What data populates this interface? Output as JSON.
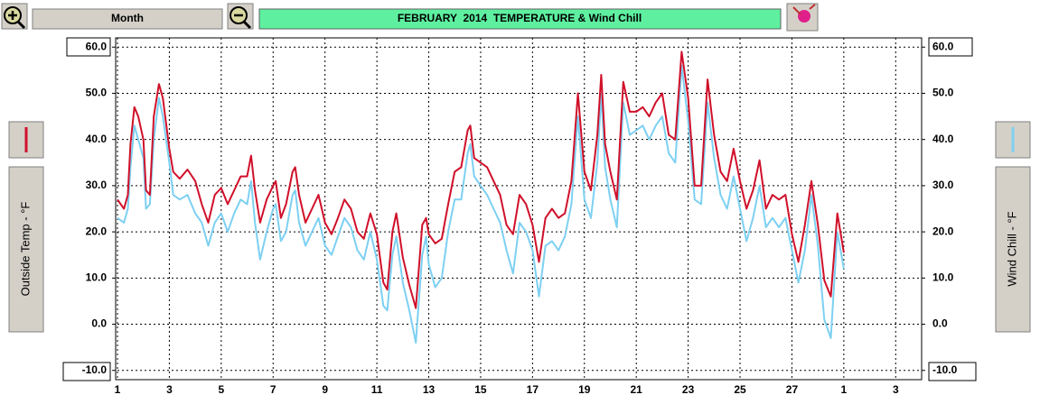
{
  "toolbar": {
    "period": "Month"
  },
  "chart_data": {
    "type": "line",
    "title": "FEBRUARY  2014  TEMPERATURE & Wind Chill",
    "x": [
      0,
      0.25,
      0.4,
      0.5,
      0.65,
      0.8,
      1.0,
      1.1,
      1.25,
      1.4,
      1.6,
      1.75,
      2.0,
      2.15,
      2.4,
      2.7,
      3.0,
      3.25,
      3.5,
      3.75,
      4.0,
      4.25,
      4.5,
      4.75,
      5.0,
      5.15,
      5.3,
      5.5,
      5.75,
      6.0,
      6.1,
      6.3,
      6.5,
      6.75,
      6.85,
      7.0,
      7.25,
      7.5,
      7.75,
      8.0,
      8.25,
      8.5,
      8.75,
      9.0,
      9.25,
      9.5,
      9.75,
      10.0,
      10.25,
      10.4,
      10.6,
      10.75,
      11.0,
      11.25,
      11.5,
      11.75,
      11.9,
      12.0,
      12.25,
      12.5,
      12.75,
      13.0,
      13.25,
      13.5,
      13.6,
      13.75,
      14.0,
      14.25,
      14.5,
      14.75,
      15.0,
      15.25,
      15.5,
      15.75,
      16.0,
      16.25,
      16.5,
      16.75,
      17.0,
      17.25,
      17.5,
      17.75,
      18.0,
      18.25,
      18.5,
      18.65,
      18.8,
      19.0,
      19.25,
      19.5,
      19.75,
      20.0,
      20.25,
      20.5,
      20.75,
      21.0,
      21.25,
      21.5,
      21.75,
      22.0,
      22.25,
      22.5,
      22.75,
      23.0,
      23.25,
      23.5,
      23.75,
      24.0,
      24.25,
      24.5,
      24.75,
      25.0,
      25.25,
      25.5,
      25.75,
      26.0,
      26.25,
      26.5,
      26.75,
      27.0,
      27.25,
      27.5,
      27.75,
      28.0
    ],
    "series": [
      {
        "name": "Outside Temp - °F",
        "color": "#d0102a",
        "values": [
          27,
          25,
          28,
          39,
          47,
          45,
          40,
          29,
          28,
          45,
          52,
          49,
          38,
          33,
          31.5,
          33.5,
          31,
          26,
          22,
          28,
          29.5,
          26,
          29,
          32,
          32,
          36.5,
          29,
          22,
          27,
          30,
          31,
          23,
          26,
          33,
          34,
          28,
          22,
          25,
          28,
          22,
          19.5,
          23,
          27,
          25,
          20,
          18.5,
          24,
          19.5,
          9,
          7.5,
          20,
          24,
          14.5,
          8.5,
          3.5,
          21.5,
          23,
          19.5,
          17.5,
          18.5,
          26,
          33,
          34,
          42,
          43,
          36,
          35,
          34,
          31,
          28,
          21.5,
          19.5,
          28,
          26,
          21.5,
          13.5,
          23,
          25,
          23,
          24,
          31,
          50,
          33,
          29,
          41,
          54,
          39,
          33,
          27,
          52.5,
          46,
          46,
          47,
          45,
          48,
          50,
          41,
          40,
          59,
          49,
          30,
          30,
          53,
          41,
          33,
          31,
          38,
          31,
          25,
          29,
          35.5,
          25,
          28,
          27,
          28,
          19.5,
          13.5,
          21.5,
          31,
          21.5,
          9.5,
          6,
          24,
          15.5
        ]
      },
      {
        "name": "Wind Chill - °F",
        "color": "#7dd0f2",
        "axis": "y2",
        "values": [
          23,
          22,
          25,
          34,
          43,
          40,
          36,
          25,
          26,
          40,
          49,
          45,
          35,
          28,
          27,
          28,
          24,
          22,
          17,
          22,
          24,
          20,
          24,
          27,
          26,
          31,
          22,
          14,
          20,
          25,
          26,
          18,
          20,
          28,
          29,
          22,
          17,
          20,
          23,
          17,
          15,
          19,
          23,
          21,
          16,
          14,
          20,
          14,
          4,
          3,
          15,
          19,
          9,
          3,
          -4,
          15,
          19,
          13,
          8,
          10,
          20,
          27,
          27,
          37,
          39,
          32,
          30,
          28,
          25,
          22,
          16,
          11,
          22,
          20,
          16,
          6,
          17,
          18,
          16,
          19,
          26,
          45,
          27,
          23,
          35,
          50,
          34,
          27,
          21,
          48,
          41,
          42,
          43,
          40,
          43,
          45,
          37,
          35,
          56,
          44,
          27,
          26,
          48,
          36,
          28,
          25,
          32,
          25,
          18,
          23,
          30,
          21,
          23,
          21,
          23,
          16,
          9,
          16,
          28,
          17,
          1,
          -3,
          20,
          12
        ]
      }
    ],
    "xlim": [
      0,
      31
    ],
    "xticks": [
      {
        "value": 0,
        "label": "1"
      },
      {
        "value": 2,
        "label": "3"
      },
      {
        "value": 4,
        "label": "5"
      },
      {
        "value": 6,
        "label": "7"
      },
      {
        "value": 8,
        "label": "9"
      },
      {
        "value": 10,
        "label": "11"
      },
      {
        "value": 12,
        "label": "13"
      },
      {
        "value": 14,
        "label": "15"
      },
      {
        "value": 16,
        "label": "17"
      },
      {
        "value": 18,
        "label": "19"
      },
      {
        "value": 20,
        "label": "21"
      },
      {
        "value": 22,
        "label": "23"
      },
      {
        "value": 24,
        "label": "25"
      },
      {
        "value": 26,
        "label": "27"
      },
      {
        "value": 28,
        "label": "1"
      },
      {
        "value": 30,
        "label": "3"
      }
    ],
    "ylim": [
      -12,
      62
    ],
    "yticks": [
      {
        "value": 60,
        "label": "60.0"
      },
      {
        "value": 50,
        "label": "50.0"
      },
      {
        "value": 40,
        "label": "40.0"
      },
      {
        "value": 30,
        "label": "30.0"
      },
      {
        "value": 20,
        "label": "20.0"
      },
      {
        "value": 10,
        "label": "10.0"
      },
      {
        "value": 0,
        "label": "0.0"
      },
      {
        "value": -10,
        "label": "-10.0"
      }
    ],
    "y2lim": [
      -12,
      62
    ],
    "y2ticks": [
      {
        "value": 60,
        "label": "60.0"
      },
      {
        "value": 50,
        "label": "50.0"
      },
      {
        "value": 40,
        "label": "40.0"
      },
      {
        "value": 30,
        "label": "30.0"
      },
      {
        "value": 20,
        "label": "20.0"
      },
      {
        "value": 10,
        "label": "10.0"
      },
      {
        "value": 0,
        "label": "0.0"
      },
      {
        "value": -10,
        "label": "-10.0"
      }
    ],
    "grid": true
  }
}
